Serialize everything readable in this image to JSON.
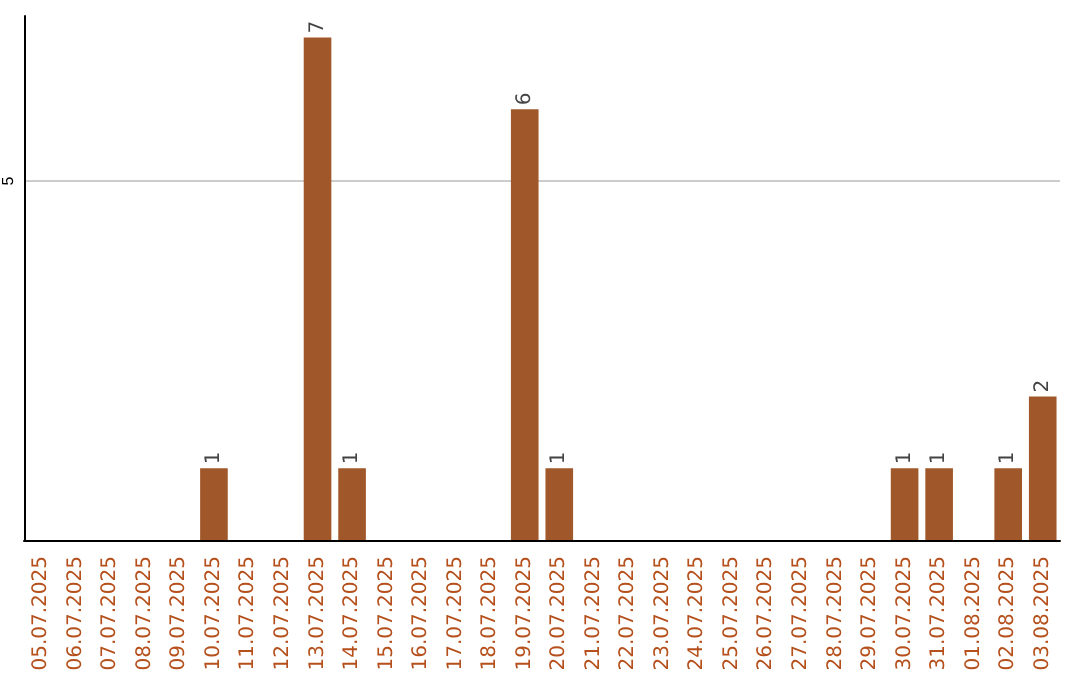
{
  "chart_data": {
    "type": "bar",
    "categories": [
      "05.07.2025",
      "06.07.2025",
      "07.07.2025",
      "08.07.2025",
      "09.07.2025",
      "10.07.2025",
      "11.07.2025",
      "12.07.2025",
      "13.07.2025",
      "14.07.2025",
      "15.07.2025",
      "16.07.2025",
      "17.07.2025",
      "18.07.2025",
      "19.07.2025",
      "20.07.2025",
      "21.07.2025",
      "22.07.2025",
      "23.07.2025",
      "24.07.2025",
      "25.07.2025",
      "26.07.2025",
      "27.07.2025",
      "28.07.2025",
      "29.07.2025",
      "30.07.2025",
      "31.07.2025",
      "01.08.2025",
      "02.08.2025",
      "03.08.2025"
    ],
    "values": [
      0,
      0,
      0,
      0,
      0,
      1,
      0,
      0,
      7,
      1,
      0,
      0,
      0,
      0,
      6,
      1,
      0,
      0,
      0,
      0,
      0,
      0,
      0,
      0,
      0,
      1,
      1,
      0,
      1,
      2
    ],
    "value_labels": [
      null,
      null,
      null,
      null,
      null,
      "1",
      null,
      null,
      "7",
      "1",
      null,
      null,
      null,
      null,
      "6",
      "1",
      null,
      null,
      null,
      null,
      null,
      null,
      null,
      null,
      null,
      "1",
      "1",
      null,
      "1",
      "2"
    ],
    "color": "#a0582a",
    "ylim": [
      0,
      7.3
    ],
    "yticks": [
      5
    ],
    "grid": "y"
  }
}
